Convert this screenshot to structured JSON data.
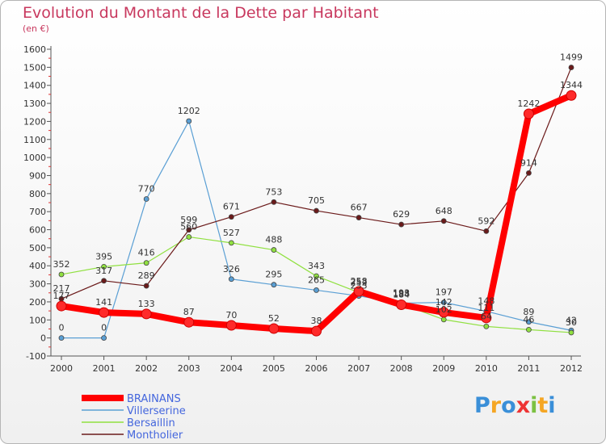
{
  "chart_data": {
    "type": "line",
    "title": "Evolution du Montant de la Dette par Habitant",
    "subtitle": "(en €)",
    "xlabel": "",
    "ylabel": "",
    "ylim": [
      -100,
      1600
    ],
    "y_ticks": [
      -100,
      0,
      100,
      200,
      300,
      400,
      500,
      600,
      700,
      800,
      900,
      1000,
      1100,
      1200,
      1300,
      1400,
      1500,
      1600
    ],
    "categories": [
      "2000",
      "2001",
      "2002",
      "2003",
      "2004",
      "2005",
      "2006",
      "2007",
      "2008",
      "2009",
      "2010",
      "2011",
      "2012"
    ],
    "grid": false,
    "legend": "bottom-left",
    "series": [
      {
        "name": "BRAINANS",
        "color": "#ff0000",
        "values": [
          177,
          141,
          133,
          87,
          70,
          52,
          38,
          258,
          184,
          142,
          111,
          1242,
          1344
        ],
        "labels": [
          "177",
          "141",
          "133",
          "87",
          "70",
          "52",
          "38",
          "258",
          "184",
          "142",
          "111",
          "1242",
          "1344"
        ]
      },
      {
        "name": "Villerserine",
        "color": "#5a9fd4",
        "values": [
          0,
          0,
          770,
          1202,
          326,
          295,
          265,
          233,
          193,
          197,
          148,
          89,
          42
        ],
        "labels": [
          "0",
          "0",
          "770",
          "1202",
          "326",
          "295",
          "265",
          "233",
          "193",
          "197",
          "148",
          "89",
          "42"
        ]
      },
      {
        "name": "Bersaillin",
        "color": "#90e040",
        "values": [
          352,
          395,
          416,
          560,
          527,
          488,
          343,
          252,
          188,
          102,
          64,
          46,
          30
        ],
        "labels": [
          "352",
          "395",
          "416",
          "560",
          "527",
          "488",
          "343",
          "252",
          "188",
          "102",
          "64",
          "46",
          "30"
        ]
      },
      {
        "name": "Montholier",
        "color": "#6b1a1a",
        "values": [
          217,
          317,
          289,
          599,
          671,
          753,
          705,
          667,
          629,
          648,
          592,
          914,
          1499
        ],
        "labels": [
          "217",
          "317",
          "289",
          "599",
          "671",
          "753",
          "705",
          "667",
          "629",
          "648",
          "592",
          "914",
          "1499"
        ]
      }
    ]
  },
  "logo": {
    "text": "Proxiti",
    "letters": [
      "P",
      "r",
      "o",
      "x",
      "i",
      "t",
      "i"
    ],
    "colors": [
      "#3a8fd8",
      "#f5a623",
      "#3a8fd8",
      "#e33",
      "#7cc142",
      "#f5a623",
      "#3a8fd8"
    ]
  }
}
